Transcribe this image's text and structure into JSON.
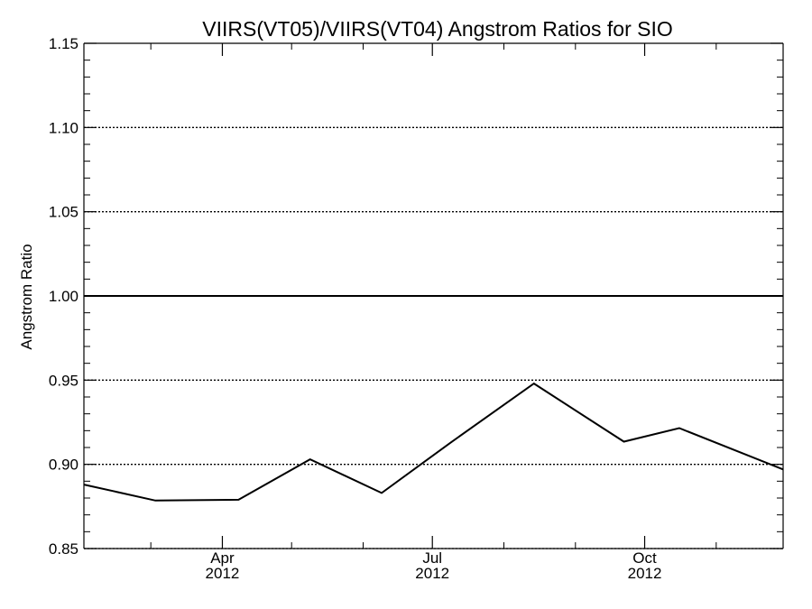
{
  "chart_data": {
    "type": "line",
    "title": "VIIRS(VT05)/VIIRS(VT04)  Angstrom Ratios for SIO",
    "xlabel": "",
    "ylabel": "Angstrom Ratio",
    "ylim": [
      0.85,
      1.15
    ],
    "y_ticks": [
      {
        "value": 0.85,
        "label": "0.85"
      },
      {
        "value": 0.9,
        "label": "0.90"
      },
      {
        "value": 0.95,
        "label": "0.95"
      },
      {
        "value": 1.0,
        "label": "1.00"
      },
      {
        "value": 1.05,
        "label": "1.05"
      },
      {
        "value": 1.1,
        "label": "1.10"
      },
      {
        "value": 1.15,
        "label": "1.15"
      }
    ],
    "y_gridlines": [
      0.85,
      0.9,
      0.95,
      1.05,
      1.1
    ],
    "reference_line": 1.0,
    "xlim": [
      "2012-02-01",
      "2012-11-30"
    ],
    "x_ticks": [
      {
        "date": "2012-04-01",
        "month": "Apr",
        "year": "2012"
      },
      {
        "date": "2012-07-01",
        "month": "Jul",
        "year": "2012"
      },
      {
        "date": "2012-10-01",
        "month": "Oct",
        "year": "2012"
      }
    ],
    "x_minor_ticks": [
      "2012-03-01",
      "2012-05-01",
      "2012-06-01",
      "2012-08-01",
      "2012-09-01",
      "2012-11-01"
    ],
    "series": [
      {
        "color": "#000000",
        "points": [
          {
            "x": "2012-02-01",
            "y": 0.888
          },
          {
            "x": "2012-03-03",
            "y": 0.8785
          },
          {
            "x": "2012-04-08",
            "y": 0.879
          },
          {
            "x": "2012-05-09",
            "y": 0.903
          },
          {
            "x": "2012-06-09",
            "y": 0.883
          },
          {
            "x": "2012-07-09",
            "y": 0.913
          },
          {
            "x": "2012-08-14",
            "y": 0.948
          },
          {
            "x": "2012-09-22",
            "y": 0.9135
          },
          {
            "x": "2012-10-16",
            "y": 0.9215
          },
          {
            "x": "2012-11-30",
            "y": 0.897
          }
        ]
      }
    ]
  }
}
